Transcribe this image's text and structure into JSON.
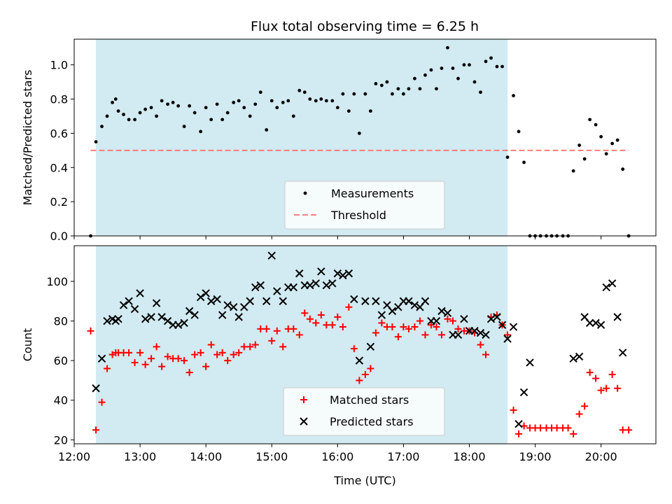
{
  "chart_data": [
    {
      "type": "scatter",
      "title": "Flux total observing time = 6.25 h",
      "xlabel": "",
      "ylabel": "Matched/Predicted stars",
      "xlim": [
        12.0,
        20.833
      ],
      "ylim": [
        0.0,
        1.15
      ],
      "yticks": [
        0.0,
        0.2,
        0.4,
        0.6,
        0.8,
        1.0
      ],
      "ytick_labels": [
        "0.0",
        "0.2",
        "0.4",
        "0.6",
        "0.8",
        "1.0"
      ],
      "grid": false,
      "legend_position": "lower-center",
      "observing_window": {
        "start": 12.33,
        "end": 18.58,
        "color": "#add8e6"
      },
      "threshold": {
        "name": "Threshold",
        "value": 0.5,
        "color": "#ff7f7f",
        "x": [
          12.25,
          20.42
        ]
      },
      "series": [
        {
          "name": "Measurements",
          "marker": "dot",
          "color": "#000000",
          "x": [
            12.25,
            12.33,
            12.42,
            12.5,
            12.58,
            12.63,
            12.67,
            12.75,
            12.83,
            12.92,
            13.0,
            13.08,
            13.17,
            13.25,
            13.33,
            13.42,
            13.5,
            13.58,
            13.67,
            13.75,
            13.83,
            13.92,
            14.0,
            14.08,
            14.17,
            14.25,
            14.33,
            14.42,
            14.5,
            14.58,
            14.67,
            14.75,
            14.83,
            14.92,
            15.0,
            15.08,
            15.17,
            15.25,
            15.33,
            15.42,
            15.5,
            15.58,
            15.67,
            15.75,
            15.83,
            15.92,
            16.0,
            16.08,
            16.17,
            16.25,
            16.33,
            16.42,
            16.5,
            16.58,
            16.67,
            16.75,
            16.83,
            16.92,
            17.0,
            17.08,
            17.17,
            17.25,
            17.33,
            17.42,
            17.5,
            17.58,
            17.67,
            17.75,
            17.83,
            17.92,
            18.0,
            18.08,
            18.17,
            18.25,
            18.33,
            18.42,
            18.5,
            18.58,
            18.67,
            18.75,
            18.83,
            18.92,
            19.0,
            19.08,
            19.17,
            19.25,
            19.33,
            19.42,
            19.5,
            19.58,
            19.67,
            19.75,
            19.83,
            19.92,
            20.0,
            20.08,
            20.17,
            20.25,
            20.33,
            20.42
          ],
          "y": [
            0.0,
            0.55,
            0.64,
            0.7,
            0.78,
            0.8,
            0.73,
            0.71,
            0.68,
            0.68,
            0.72,
            0.74,
            0.75,
            0.7,
            0.79,
            0.77,
            0.78,
            0.76,
            0.64,
            0.76,
            0.72,
            0.61,
            0.75,
            0.68,
            0.77,
            0.68,
            0.72,
            0.78,
            0.79,
            0.75,
            0.7,
            0.77,
            0.84,
            0.62,
            0.79,
            0.75,
            0.78,
            0.79,
            0.7,
            0.85,
            0.84,
            0.8,
            0.79,
            0.8,
            0.79,
            0.79,
            0.75,
            0.83,
            0.73,
            0.83,
            0.6,
            0.83,
            0.73,
            0.89,
            0.88,
            0.9,
            0.83,
            0.86,
            0.83,
            0.86,
            0.92,
            0.86,
            0.94,
            0.97,
            0.86,
            0.98,
            1.1,
            0.98,
            0.92,
            1.0,
            1.0,
            0.9,
            0.84,
            1.02,
            1.04,
            0.99,
            0.99,
            0.46,
            0.82,
            0.61,
            0.43,
            0.0,
            0.0,
            0.0,
            0.0,
            0.0,
            0.0,
            0.0,
            0.0,
            0.38,
            0.53,
            0.45,
            0.68,
            0.65,
            0.58,
            0.48,
            0.54,
            0.56,
            0.39,
            0.0
          ]
        }
      ]
    },
    {
      "type": "scatter",
      "title": "",
      "xlabel": "Time (UTC)",
      "ylabel": "Count",
      "xlim": [
        12.0,
        20.833
      ],
      "ylim": [
        18,
        118
      ],
      "yticks": [
        20,
        40,
        60,
        80,
        100
      ],
      "ytick_labels": [
        "20",
        "40",
        "60",
        "80",
        "100"
      ],
      "xticks": [
        12,
        13,
        14,
        15,
        16,
        17,
        18,
        19,
        20
      ],
      "xtick_labels": [
        "12:00",
        "13:00",
        "14:00",
        "15:00",
        "16:00",
        "17:00",
        "18:00",
        "19:00",
        "20:00"
      ],
      "grid": false,
      "legend_position": "lower-center",
      "observing_window": {
        "start": 12.33,
        "end": 18.58,
        "color": "#add8e6"
      },
      "series": [
        {
          "name": "Matched stars",
          "marker": "plus",
          "color": "#ff0000",
          "x": [
            12.25,
            12.33,
            12.42,
            12.5,
            12.58,
            12.63,
            12.67,
            12.75,
            12.83,
            12.92,
            13.0,
            13.08,
            13.17,
            13.25,
            13.33,
            13.42,
            13.5,
            13.58,
            13.67,
            13.75,
            13.83,
            13.92,
            14.0,
            14.08,
            14.17,
            14.25,
            14.33,
            14.42,
            14.5,
            14.58,
            14.67,
            14.75,
            14.83,
            14.92,
            15.0,
            15.08,
            15.17,
            15.25,
            15.33,
            15.42,
            15.5,
            15.58,
            15.67,
            15.75,
            15.83,
            15.92,
            16.0,
            16.08,
            16.17,
            16.25,
            16.33,
            16.42,
            16.5,
            16.58,
            16.67,
            16.75,
            16.83,
            16.92,
            17.0,
            17.08,
            17.17,
            17.25,
            17.33,
            17.42,
            17.5,
            17.58,
            17.67,
            17.75,
            17.83,
            17.92,
            18.0,
            18.08,
            18.17,
            18.25,
            18.33,
            18.42,
            18.5,
            18.58,
            18.67,
            18.75,
            18.83,
            18.92,
            19.0,
            19.08,
            19.17,
            19.25,
            19.33,
            19.42,
            19.5,
            19.58,
            19.67,
            19.75,
            19.83,
            19.92,
            20.0,
            20.08,
            20.17,
            20.25,
            20.33,
            20.42
          ],
          "y": [
            75,
            25,
            39,
            56,
            63,
            64,
            64,
            64,
            64,
            59,
            64,
            58,
            61,
            67,
            57,
            62,
            61,
            61,
            60,
            54,
            63,
            64,
            57,
            68,
            63,
            64,
            60,
            63,
            64,
            67,
            67,
            68,
            76,
            76,
            70,
            75,
            67,
            76,
            76,
            73,
            84,
            81,
            79,
            83,
            78,
            78,
            82,
            77,
            87,
            66,
            50,
            53,
            56,
            74,
            79,
            77,
            77,
            72,
            77,
            76,
            77,
            80,
            73,
            78,
            77,
            73,
            81,
            80,
            76,
            75,
            75,
            74,
            68,
            63,
            82,
            83,
            78,
            73,
            35,
            23,
            27,
            26,
            26,
            26,
            26,
            26,
            26,
            26,
            26,
            23,
            33,
            37,
            54,
            51,
            45,
            46,
            53,
            46,
            25,
            25
          ]
        },
        {
          "name": "Predicted stars",
          "marker": "x",
          "color": "#000000",
          "x": [
            12.33,
            12.42,
            12.5,
            12.58,
            12.63,
            12.67,
            12.75,
            12.83,
            12.92,
            13.0,
            13.08,
            13.17,
            13.25,
            13.33,
            13.42,
            13.5,
            13.58,
            13.67,
            13.75,
            13.83,
            13.92,
            14.0,
            14.08,
            14.17,
            14.25,
            14.33,
            14.42,
            14.5,
            14.58,
            14.67,
            14.75,
            14.83,
            14.92,
            15.0,
            15.08,
            15.17,
            15.25,
            15.33,
            15.42,
            15.5,
            15.58,
            15.67,
            15.75,
            15.83,
            15.92,
            16.0,
            16.08,
            16.17,
            16.25,
            16.33,
            16.42,
            16.5,
            16.58,
            16.67,
            16.75,
            16.83,
            16.92,
            17.0,
            17.08,
            17.17,
            17.25,
            17.33,
            17.42,
            17.5,
            17.58,
            17.67,
            17.75,
            17.83,
            17.92,
            18.0,
            18.08,
            18.17,
            18.25,
            18.33,
            18.42,
            18.5,
            18.58,
            18.67,
            18.75,
            18.83,
            18.92,
            19.58,
            19.67,
            19.75,
            19.83,
            19.92,
            20.0,
            20.08,
            20.17,
            20.25,
            20.33
          ],
          "y": [
            46,
            61,
            80,
            81,
            80,
            81,
            88,
            90,
            86,
            94,
            81,
            82,
            89,
            82,
            80,
            78,
            78,
            79,
            85,
            83,
            92,
            94,
            90,
            91,
            83,
            88,
            87,
            82,
            87,
            90,
            97,
            98,
            90,
            113,
            95,
            90,
            97,
            97,
            104,
            98,
            98,
            99,
            105,
            98,
            99,
            104,
            103,
            104,
            91,
            60,
            90,
            67,
            90,
            83,
            88,
            85,
            87,
            90,
            90,
            88,
            87,
            90,
            80,
            80,
            85,
            84,
            73,
            73,
            81,
            75,
            75,
            74,
            73,
            81,
            82,
            78,
            71,
            77,
            28,
            44,
            59,
            61,
            62,
            82,
            79,
            79,
            78,
            97,
            99,
            82,
            64
          ]
        }
      ]
    }
  ]
}
